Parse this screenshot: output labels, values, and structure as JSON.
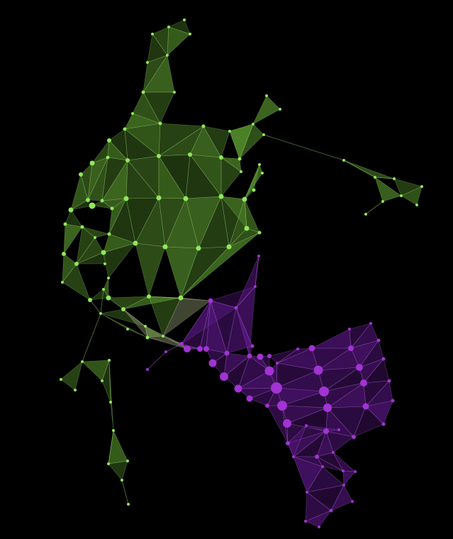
{
  "diagram": {
    "type": "network-graph",
    "background": "#000000",
    "groups": [
      {
        "name": "green-cluster",
        "node_color": "#8fe85a",
        "fill_color": "#5a9a2e",
        "edge_color": "#b6f08a",
        "approx_node_count": 75
      },
      {
        "name": "purple-cluster",
        "node_color": "#a233d4",
        "fill_color": "#5a1785",
        "edge_color": "#c070ee",
        "approx_node_count": 70
      }
    ]
  }
}
